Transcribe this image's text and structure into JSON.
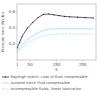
{
  "chart_data": {
    "type": "line",
    "xlabel": "s",
    "ylabel": "Pressure force (Ws/B₀)",
    "x": [
      1,
      10,
      20,
      40,
      60,
      80,
      100,
      120,
      140,
      160,
      180,
      200,
      230,
      260,
      290
    ],
    "xlim": [
      0,
      300
    ],
    "ylim": [
      0,
      0.7
    ],
    "xticks": [
      1,
      50,
      150,
      250
    ],
    "yticks": [
      0.2,
      0.4,
      0.6
    ],
    "grid": false,
    "legend": "bottom",
    "series": [
      {
        "name": "Rayleigh match, case of fluid compressible",
        "color": "#1a1a1a",
        "marker": "circle",
        "line_style": "solid",
        "values": [
          0.15,
          0.22,
          0.3,
          0.4,
          0.47,
          0.53,
          0.57,
          0.575,
          0.565,
          0.555,
          0.545,
          0.54,
          0.535,
          0.53,
          0.525
        ]
      },
      {
        "name": "Isolated notch fluid compressible",
        "color": "#88d8f0",
        "line_style": "solid",
        "values": [
          0.1,
          0.15,
          0.19,
          0.26,
          0.3,
          0.34,
          0.37,
          0.385,
          0.39,
          0.39,
          0.39,
          0.39,
          0.39,
          0.39,
          0.39
        ]
      },
      {
        "name": "Incompressible fluids, linear lubrication",
        "color": "#88d8f0",
        "line_style": "dashed",
        "values": [
          0.08,
          0.12,
          0.16,
          0.21,
          0.25,
          0.28,
          0.305,
          0.315,
          0.32,
          0.325,
          0.325,
          0.325,
          0.325,
          0.325,
          0.325
        ]
      }
    ]
  }
}
